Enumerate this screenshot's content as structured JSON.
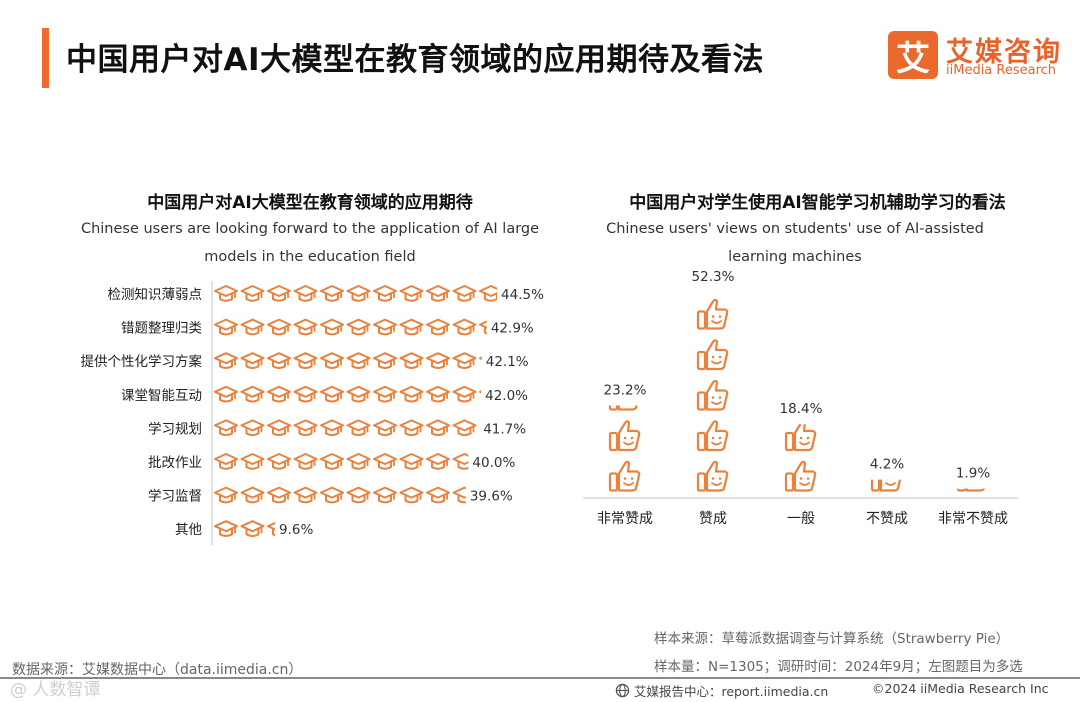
{
  "header": {
    "title": "中国用户对AI大模型在教育领域的应用期待及看法",
    "logo_char": "艾",
    "logo_cn": "艾媒咨询",
    "logo_en": "iiMedia Research"
  },
  "colors": {
    "accent": "#ec6b2d",
    "icon": "#e8823c",
    "axis": "#cfcfcf"
  },
  "left_chart": {
    "title": "中国用户对AI大模型在教育领域的应用期待",
    "subtitle": "Chinese users are looking forward to the application of AI large models in the education field"
  },
  "right_chart": {
    "title": "中国用户对学生使用AI智能学习机辅助学习的看法",
    "subtitle": "Chinese users' views on students' use of AI-assisted learning machines"
  },
  "chart_data": [
    {
      "type": "bar",
      "orientation": "horizontal",
      "title": "中国用户对AI大模型在教育领域的应用期待",
      "subtitle": "Chinese users are looking forward to the application of AI large models in the education field",
      "icon": "graduation-cap-icon",
      "categories": [
        "检测知识薄弱点",
        "错题整理归类",
        "提供个性化学习方案",
        "课堂智能互动",
        "学习规划",
        "批改作业",
        "学习监督",
        "其他"
      ],
      "values": [
        44.5,
        42.9,
        42.1,
        42.0,
        41.7,
        40.0,
        39.6,
        9.6
      ],
      "labels": [
        "44.5%",
        "42.9%",
        "42.1%",
        "42.0%",
        "41.7%",
        "40.0%",
        "39.6%",
        "9.6%"
      ],
      "unit": "%",
      "xlim": [
        0,
        45
      ]
    },
    {
      "type": "bar",
      "orientation": "vertical",
      "title": "中国用户对学生使用AI智能学习机辅助学习的看法",
      "subtitle": "Chinese users' views on students' use of AI-assisted learning machines",
      "icon": "thumbs-up-icon",
      "categories": [
        "非常赞成",
        "赞成",
        "一般",
        "不赞成",
        "非常不赞成"
      ],
      "values": [
        23.2,
        52.3,
        18.4,
        4.2,
        1.9
      ],
      "labels": [
        "23.2%",
        "52.3%",
        "18.4%",
        "4.2%",
        "1.9%"
      ],
      "unit": "%",
      "ylim": [
        0,
        55
      ]
    }
  ],
  "footer": {
    "source_left": "数据来源：艾媒数据中心（data.iimedia.cn）",
    "sample_source": "样本来源：草莓派数据调查与计算系统（Strawberry Pie）",
    "sample_info": "样本量：N=1305；调研时间：2024年9月；左图题目为多选",
    "report_center": "艾媒报告中心：report.iimedia.cn",
    "copyright": "©2024  iiMedia Research  Inc",
    "watermark": "@ 人数智谭"
  }
}
